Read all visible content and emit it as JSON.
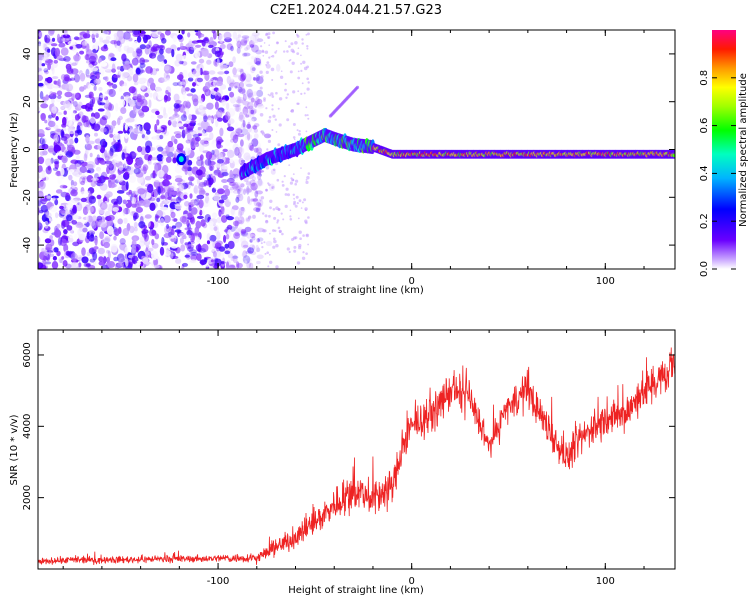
{
  "title": "C2E1.2024.044.21.57.G23",
  "colors": {
    "snr_line": "#ee2222",
    "colormap": [
      "#ffffff",
      "#6a00ff",
      "#0000ff",
      "#00ffff",
      "#00ff00",
      "#ffff00",
      "#ff8000",
      "#ff0000",
      "#ff0080"
    ]
  },
  "chart_data": [
    {
      "type": "heatmap",
      "xlabel": "Height of straight line (km)",
      "ylabel": "Frequency (Hz)",
      "xlim": [
        -193,
        136
      ],
      "ylim": [
        -50,
        50
      ],
      "xticks": [
        -100,
        0,
        100
      ],
      "xtick_labels": [
        "-100",
        "0",
        "100"
      ],
      "yticks": [
        -40,
        -20,
        0,
        20,
        40
      ],
      "ytick_labels": [
        "-40",
        "-20",
        "0",
        "20",
        "40"
      ],
      "grid": false,
      "colorbar": {
        "label": "Normalized spectral amplitude",
        "range": [
          0,
          1
        ],
        "ticks": [
          0.0,
          0.2,
          0.4,
          0.6,
          0.8
        ],
        "tick_labels": [
          "0.0",
          "0.2",
          "0.4",
          "0.6",
          "0.8"
        ]
      },
      "features": {
        "noise_region_x": [
          -193,
          -78
        ],
        "signal_track": [
          [
            -88,
            -10
          ],
          [
            -75,
            -4
          ],
          [
            -60,
            0
          ],
          [
            -45,
            6
          ],
          [
            -38,
            4
          ],
          [
            -30,
            2
          ],
          [
            -20,
            1
          ],
          [
            -10,
            -2
          ],
          [
            0,
            -2
          ],
          [
            20,
            -2
          ],
          [
            60,
            -2
          ],
          [
            100,
            -2
          ],
          [
            136,
            -2
          ]
        ],
        "high_amplitude_start_x": -20,
        "side_branch": [
          [
            -42,
            14
          ],
          [
            -28,
            26
          ]
        ]
      }
    },
    {
      "type": "line",
      "xlabel": "Height of straight line (km)",
      "ylabel": "SNR (10 * v/v)",
      "xlim": [
        -193,
        136
      ],
      "ylim": [
        0,
        6700
      ],
      "xticks": [
        -100,
        0,
        100
      ],
      "xtick_labels": [
        "-100",
        "0",
        "100"
      ],
      "yticks": [
        2000,
        4000,
        6000
      ],
      "ytick_labels": [
        "2000",
        "4000",
        "6000"
      ],
      "grid": false,
      "series": [
        {
          "x": [
            -193,
            -180,
            -160,
            -140,
            -120,
            -100,
            -90,
            -80,
            -70,
            -60,
            -50,
            -40,
            -30,
            -20,
            -10,
            -5,
            0,
            10,
            20,
            30,
            40,
            50,
            60,
            70,
            80,
            90,
            100,
            110,
            120,
            130,
            136
          ],
          "values": [
            200,
            250,
            250,
            270,
            280,
            300,
            300,
            320,
            600,
            900,
            1300,
            1800,
            2200,
            2000,
            2300,
            3300,
            4000,
            4300,
            5000,
            4800,
            3400,
            4600,
            5000,
            4000,
            3100,
            3800,
            4200,
            4300,
            5000,
            5400,
            5600
          ],
          "noise_amplitude": [
            120,
            150,
            150,
            150,
            150,
            150,
            180,
            200,
            350,
            450,
            550,
            700,
            800,
            800,
            800,
            700,
            600,
            700,
            800,
            700,
            500,
            700,
            700,
            700,
            600,
            700,
            700,
            700,
            800,
            700,
            700
          ]
        }
      ]
    }
  ]
}
